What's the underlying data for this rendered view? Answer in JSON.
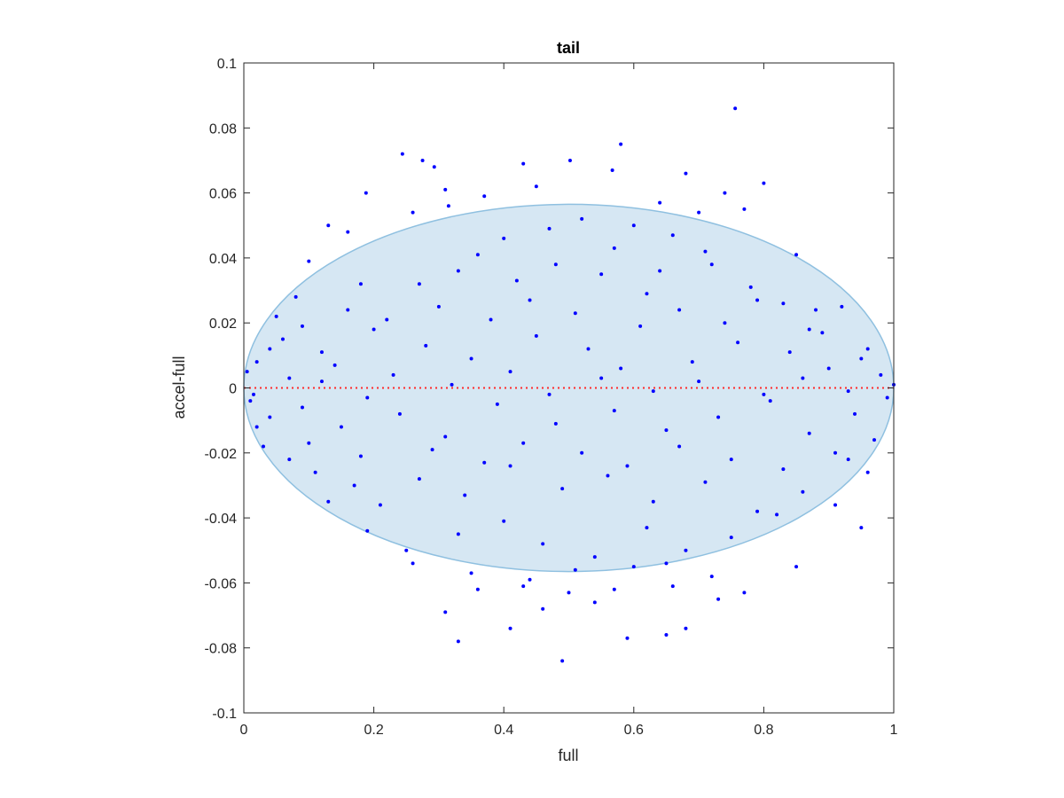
{
  "chart_data": {
    "type": "scatter",
    "title": "tail",
    "xlabel": "full",
    "ylabel": "accel-full",
    "xlim": [
      0,
      1
    ],
    "ylim": [
      -0.1,
      0.1
    ],
    "xticks": [
      0,
      0.2,
      0.4,
      0.6,
      0.8,
      1
    ],
    "xtick_labels": [
      "0",
      "0.2",
      "0.4",
      "0.6",
      "0.8",
      "1"
    ],
    "yticks": [
      -0.1,
      -0.08,
      -0.06,
      -0.04,
      -0.02,
      0,
      0.02,
      0.04,
      0.06,
      0.08,
      0.1
    ],
    "ytick_labels": [
      "-0.1",
      "-0.08",
      "-0.06",
      "-0.04",
      "-0.02",
      "0",
      "0.02",
      "0.04",
      "0.06",
      "0.08",
      "0.1"
    ],
    "grid": false,
    "box": true,
    "ellipse": {
      "center": [
        0.5,
        0.0
      ],
      "semi_axes": [
        0.5,
        0.0565
      ],
      "fill_color": "#d6e7f3",
      "edge_color": "#8fc0e0"
    },
    "reference_line": {
      "y": 0,
      "color": "#ff2a2a",
      "style": "dotted"
    },
    "series": [
      {
        "marker_color": "#0000ff",
        "points": [
          [
            0.756,
            0.086
          ],
          [
            0.58,
            0.075
          ],
          [
            0.244,
            0.072
          ],
          [
            0.275,
            0.07
          ],
          [
            0.293,
            0.068
          ],
          [
            0.43,
            0.069
          ],
          [
            0.502,
            0.07
          ],
          [
            0.567,
            0.067
          ],
          [
            0.68,
            0.066
          ],
          [
            0.8,
            0.063
          ],
          [
            0.188,
            0.06
          ],
          [
            0.31,
            0.061
          ],
          [
            0.45,
            0.062
          ],
          [
            0.74,
            0.06
          ],
          [
            0.37,
            0.059
          ],
          [
            0.13,
            0.05
          ],
          [
            0.26,
            0.054
          ],
          [
            0.315,
            0.056
          ],
          [
            0.64,
            0.057
          ],
          [
            0.77,
            0.055
          ],
          [
            0.16,
            0.048
          ],
          [
            0.52,
            0.052
          ],
          [
            0.6,
            0.05
          ],
          [
            0.7,
            0.054
          ],
          [
            0.85,
            0.041
          ],
          [
            0.1,
            0.039
          ],
          [
            0.4,
            0.046
          ],
          [
            0.47,
            0.049
          ],
          [
            0.66,
            0.047
          ],
          [
            0.92,
            0.025
          ],
          [
            0.05,
            0.022
          ],
          [
            0.08,
            0.028
          ],
          [
            0.18,
            0.032
          ],
          [
            0.22,
            0.021
          ],
          [
            0.33,
            0.036
          ],
          [
            0.42,
            0.033
          ],
          [
            0.55,
            0.035
          ],
          [
            0.62,
            0.029
          ],
          [
            0.72,
            0.038
          ],
          [
            0.78,
            0.031
          ],
          [
            0.88,
            0.024
          ],
          [
            0.96,
            0.012
          ],
          [
            0.02,
            0.008
          ],
          [
            0.06,
            0.015
          ],
          [
            0.12,
            0.011
          ],
          [
            0.2,
            0.018
          ],
          [
            0.28,
            0.013
          ],
          [
            0.35,
            0.009
          ],
          [
            0.45,
            0.016
          ],
          [
            0.53,
            0.012
          ],
          [
            0.61,
            0.019
          ],
          [
            0.69,
            0.008
          ],
          [
            0.76,
            0.014
          ],
          [
            0.84,
            0.011
          ],
          [
            0.9,
            0.006
          ],
          [
            0.98,
            0.004
          ],
          [
            0.01,
            -0.004
          ],
          [
            0.04,
            -0.009
          ],
          [
            0.09,
            -0.006
          ],
          [
            0.15,
            -0.012
          ],
          [
            0.24,
            -0.008
          ],
          [
            0.31,
            -0.015
          ],
          [
            0.39,
            -0.005
          ],
          [
            0.48,
            -0.011
          ],
          [
            0.57,
            -0.007
          ],
          [
            0.65,
            -0.013
          ],
          [
            0.73,
            -0.009
          ],
          [
            0.81,
            -0.004
          ],
          [
            0.87,
            -0.014
          ],
          [
            0.94,
            -0.008
          ],
          [
            0.99,
            -0.003
          ],
          [
            0.03,
            -0.018
          ],
          [
            0.07,
            -0.022
          ],
          [
            0.11,
            -0.026
          ],
          [
            0.17,
            -0.03
          ],
          [
            0.21,
            -0.036
          ],
          [
            0.27,
            -0.028
          ],
          [
            0.34,
            -0.033
          ],
          [
            0.41,
            -0.024
          ],
          [
            0.49,
            -0.031
          ],
          [
            0.56,
            -0.027
          ],
          [
            0.63,
            -0.035
          ],
          [
            0.71,
            -0.029
          ],
          [
            0.79,
            -0.038
          ],
          [
            0.86,
            -0.032
          ],
          [
            0.93,
            -0.022
          ],
          [
            0.97,
            -0.016
          ],
          [
            0.13,
            -0.035
          ],
          [
            0.19,
            -0.044
          ],
          [
            0.25,
            -0.05
          ],
          [
            0.33,
            -0.045
          ],
          [
            0.4,
            -0.041
          ],
          [
            0.46,
            -0.048
          ],
          [
            0.54,
            -0.052
          ],
          [
            0.62,
            -0.043
          ],
          [
            0.68,
            -0.05
          ],
          [
            0.75,
            -0.046
          ],
          [
            0.82,
            -0.039
          ],
          [
            0.91,
            -0.036
          ],
          [
            0.95,
            -0.043
          ],
          [
            0.26,
            -0.054
          ],
          [
            0.35,
            -0.057
          ],
          [
            0.44,
            -0.059
          ],
          [
            0.51,
            -0.056
          ],
          [
            0.6,
            -0.055
          ],
          [
            0.65,
            -0.054
          ],
          [
            0.72,
            -0.058
          ],
          [
            0.85,
            -0.055
          ],
          [
            0.36,
            -0.062
          ],
          [
            0.43,
            -0.061
          ],
          [
            0.5,
            -0.063
          ],
          [
            0.57,
            -0.062
          ],
          [
            0.66,
            -0.061
          ],
          [
            0.77,
            -0.063
          ],
          [
            0.31,
            -0.069
          ],
          [
            0.46,
            -0.068
          ],
          [
            0.54,
            -0.066
          ],
          [
            0.73,
            -0.065
          ],
          [
            0.41,
            -0.074
          ],
          [
            0.59,
            -0.077
          ],
          [
            0.65,
            -0.076
          ],
          [
            0.68,
            -0.074
          ],
          [
            0.33,
            -0.078
          ],
          [
            0.49,
            -0.084
          ],
          [
            0.04,
            0.012
          ],
          [
            0.07,
            0.003
          ],
          [
            0.14,
            0.007
          ],
          [
            0.23,
            0.004
          ],
          [
            0.3,
            0.025
          ],
          [
            0.38,
            0.021
          ],
          [
            0.44,
            0.027
          ],
          [
            0.51,
            0.023
          ],
          [
            0.58,
            0.006
          ],
          [
            0.67,
            0.024
          ],
          [
            0.74,
            0.02
          ],
          [
            0.83,
            0.026
          ],
          [
            0.89,
            0.017
          ],
          [
            0.95,
            0.009
          ],
          [
            0.02,
            -0.012
          ],
          [
            0.1,
            -0.017
          ],
          [
            0.18,
            -0.021
          ],
          [
            0.29,
            -0.019
          ],
          [
            0.37,
            -0.023
          ],
          [
            0.43,
            -0.017
          ],
          [
            0.52,
            -0.02
          ],
          [
            0.59,
            -0.024
          ],
          [
            0.67,
            -0.018
          ],
          [
            0.75,
            -0.022
          ],
          [
            0.83,
            -0.025
          ],
          [
            0.91,
            -0.02
          ],
          [
            0.96,
            -0.026
          ],
          [
            0.09,
            0.019
          ],
          [
            0.16,
            0.024
          ],
          [
            0.27,
            0.032
          ],
          [
            0.36,
            0.041
          ],
          [
            0.48,
            0.038
          ],
          [
            0.57,
            0.043
          ],
          [
            0.64,
            0.036
          ],
          [
            0.71,
            0.042
          ],
          [
            0.79,
            0.027
          ],
          [
            0.87,
            0.018
          ],
          [
            0.12,
            0.002
          ],
          [
            0.19,
            -0.003
          ],
          [
            0.32,
            0.001
          ],
          [
            0.41,
            0.005
          ],
          [
            0.47,
            -0.002
          ],
          [
            0.55,
            0.003
          ],
          [
            0.63,
            -0.001
          ],
          [
            0.7,
            0.002
          ],
          [
            0.8,
            -0.002
          ],
          [
            0.86,
            0.003
          ],
          [
            0.93,
            -0.001
          ],
          [
            1.0,
            0.001
          ],
          [
            0.005,
            0.005
          ],
          [
            0.015,
            -0.002
          ]
        ]
      }
    ]
  }
}
